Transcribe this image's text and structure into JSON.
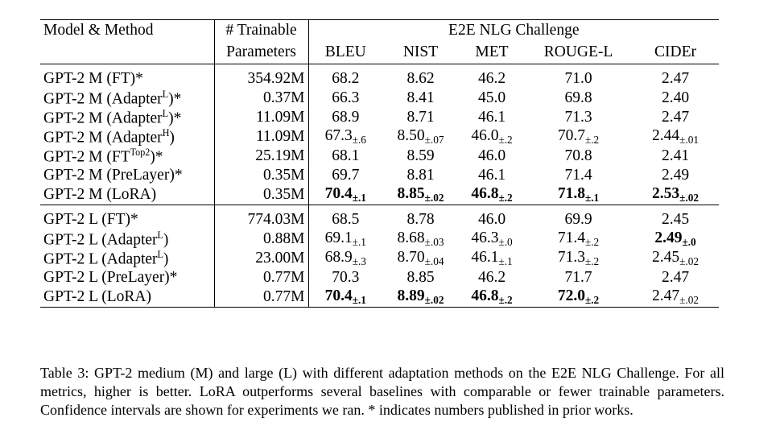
{
  "table": {
    "header": {
      "model_method": "Model & Method",
      "trainable_line1": "# Trainable",
      "trainable_line2": "Parameters",
      "group_title": "E2E NLG Challenge",
      "metrics": [
        "BLEU",
        "NIST",
        "MET",
        "ROUGE-L",
        "CIDEr"
      ]
    },
    "rows": [
      {
        "model": "GPT-2 M (FT)*",
        "params": "354.92M",
        "bleu": "68.2",
        "bleu_ci": "",
        "nist": "8.62",
        "nist_ci": "",
        "met": "46.2",
        "met_ci": "",
        "rouge": "71.0",
        "rouge_ci": "",
        "cider": "2.47",
        "cider_ci": ""
      },
      {
        "model_base": "GPT-2 M (Adapter",
        "model_sup": "L",
        "model_tail": ")*",
        "params": "0.37M",
        "bleu": "66.3",
        "bleu_ci": "",
        "nist": "8.41",
        "nist_ci": "",
        "met": "45.0",
        "met_ci": "",
        "rouge": "69.8",
        "rouge_ci": "",
        "cider": "2.40",
        "cider_ci": ""
      },
      {
        "model_base": "GPT-2 M (Adapter",
        "model_sup": "L",
        "model_tail": ")*",
        "params": "11.09M",
        "bleu": "68.9",
        "bleu_ci": "",
        "nist": "8.71",
        "nist_ci": "",
        "met": "46.1",
        "met_ci": "",
        "rouge": "71.3",
        "rouge_ci": "",
        "cider": "2.47",
        "cider_ci": ""
      },
      {
        "model_base": "GPT-2 M (Adapter",
        "model_sup": "H",
        "model_tail": ")",
        "params": "11.09M",
        "bleu": "67.3",
        "bleu_ci": "±.6",
        "nist": "8.50",
        "nist_ci": "±.07",
        "met": "46.0",
        "met_ci": "±.2",
        "rouge": "70.7",
        "rouge_ci": "±.2",
        "cider": "2.44",
        "cider_ci": "±.01"
      },
      {
        "model_base": "GPT-2 M (FT",
        "model_sup": "Top2",
        "model_tail": ")*",
        "params": "25.19M",
        "bleu": "68.1",
        "bleu_ci": "",
        "nist": "8.59",
        "nist_ci": "",
        "met": "46.0",
        "met_ci": "",
        "rouge": "70.8",
        "rouge_ci": "",
        "cider": "2.41",
        "cider_ci": ""
      },
      {
        "model": "GPT-2 M (PreLayer)*",
        "params": "0.35M",
        "bleu": "69.7",
        "bleu_ci": "",
        "nist": "8.81",
        "nist_ci": "",
        "met": "46.1",
        "met_ci": "",
        "rouge": "71.4",
        "rouge_ci": "",
        "cider": "2.49",
        "cider_ci": ""
      },
      {
        "model": "GPT-2 M (LoRA)",
        "params": "0.35M",
        "bleu": "70.4",
        "bleu_ci": "±.1",
        "nist": "8.85",
        "nist_ci": "±.02",
        "met": "46.8",
        "met_ci": "±.2",
        "rouge": "71.8",
        "rouge_ci": "±.1",
        "cider": "2.53",
        "cider_ci": "±.02"
      },
      {
        "model": "GPT-2 L (FT)*",
        "params": "774.03M",
        "bleu": "68.5",
        "bleu_ci": "",
        "nist": "8.78",
        "nist_ci": "",
        "met": "46.0",
        "met_ci": "",
        "rouge": "69.9",
        "rouge_ci": "",
        "cider": "2.45",
        "cider_ci": ""
      },
      {
        "model_base": "GPT-2 L (Adapter",
        "model_sup": "L",
        "model_tail": ")",
        "params": "0.88M",
        "bleu": "69.1",
        "bleu_ci": "±.1",
        "nist": "8.68",
        "nist_ci": "±.03",
        "met": "46.3",
        "met_ci": "±.0",
        "rouge": "71.4",
        "rouge_ci": "±.2",
        "cider": "2.49",
        "cider_ci": "±.0"
      },
      {
        "model_base": "GPT-2 L (Adapter",
        "model_sup": "L",
        "model_tail": ")",
        "params": "23.00M",
        "bleu": "68.9",
        "bleu_ci": "±.3",
        "nist": "8.70",
        "nist_ci": "±.04",
        "met": "46.1",
        "met_ci": "±.1",
        "rouge": "71.3",
        "rouge_ci": "±.2",
        "cider": "2.45",
        "cider_ci": "±.02"
      },
      {
        "model": "GPT-2 L (PreLayer)*",
        "params": "0.77M",
        "bleu": "70.3",
        "bleu_ci": "",
        "nist": "8.85",
        "nist_ci": "",
        "met": "46.2",
        "met_ci": "",
        "rouge": "71.7",
        "rouge_ci": "",
        "cider": "2.47",
        "cider_ci": ""
      },
      {
        "model": "GPT-2 L (LoRA)",
        "params": "0.77M",
        "bleu": "70.4",
        "bleu_ci": "±.1",
        "nist": "8.89",
        "nist_ci": "±.02",
        "met": "46.8",
        "met_ci": "±.2",
        "rouge": "72.0",
        "rouge_ci": "±.2",
        "cider": "2.47",
        "cider_ci": "±.02"
      }
    ]
  },
  "caption": "Table 3: GPT-2 medium (M) and large (L) with different adaptation methods on the E2E NLG Challenge. For all metrics, higher is better. LoRA outperforms several baselines with comparable or fewer trainable parameters. Confidence intervals are shown for experiments we ran. * indicates numbers published in prior works."
}
